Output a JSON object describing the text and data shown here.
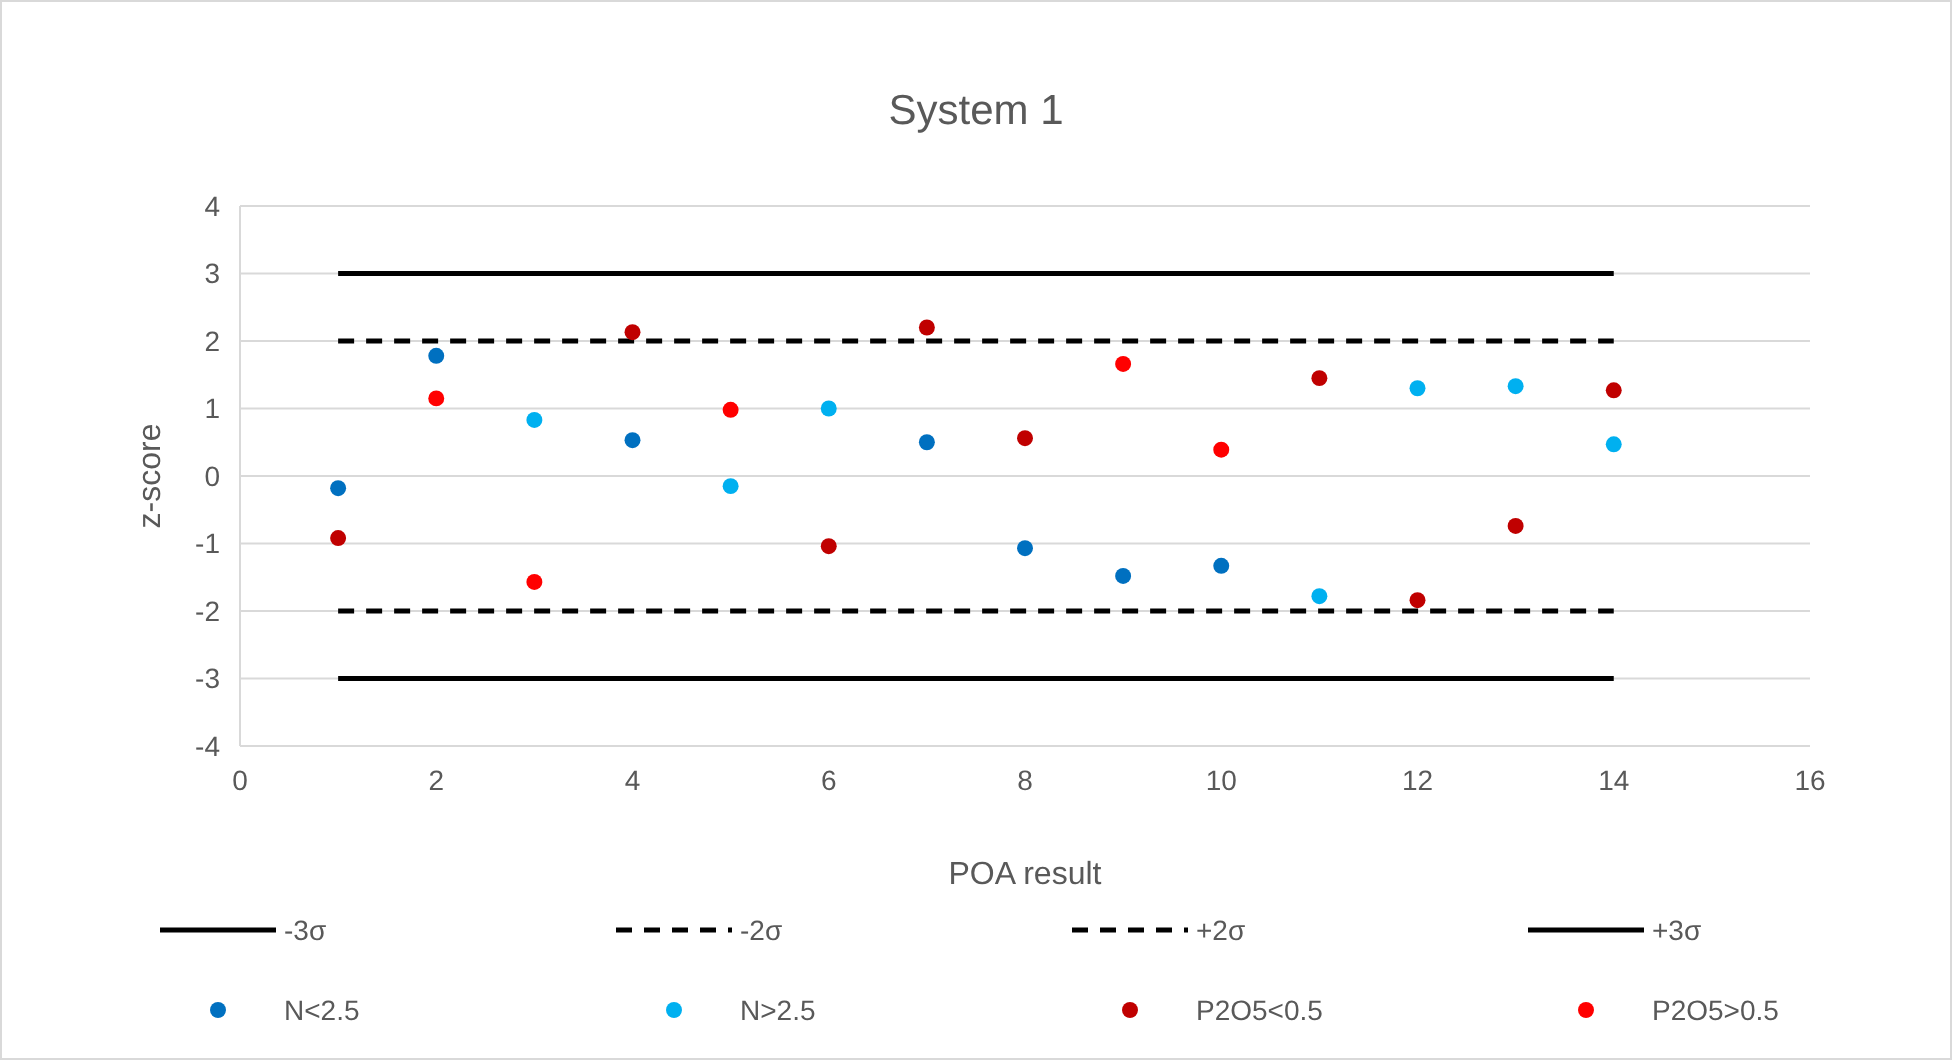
{
  "chart_data": {
    "type": "scatter",
    "title": "System 1",
    "xlabel": "POA result",
    "ylabel": "z-score",
    "xlim": [
      0,
      16
    ],
    "xticks": [
      0,
      2,
      4,
      6,
      8,
      10,
      12,
      14,
      16
    ],
    "ylim": [
      -4,
      4
    ],
    "yticks": [
      -4,
      -3,
      -2,
      -1,
      0,
      1,
      2,
      3,
      4
    ],
    "grid": "y",
    "legend": "bottom",
    "series": [
      {
        "name": "-3σ",
        "type": "line",
        "color": "#000000",
        "line_style": "solid",
        "marker": "none",
        "x": [
          1,
          14
        ],
        "values": [
          -3,
          -3
        ]
      },
      {
        "name": "-2σ",
        "type": "line",
        "color": "#000000",
        "line_style": "dashed",
        "marker": "none",
        "x": [
          1,
          14
        ],
        "values": [
          -2,
          -2
        ]
      },
      {
        "name": "+2σ",
        "type": "line",
        "color": "#000000",
        "line_style": "dashed",
        "marker": "none",
        "x": [
          1,
          14
        ],
        "values": [
          2,
          2
        ]
      },
      {
        "name": "+3σ",
        "type": "line",
        "color": "#000000",
        "line_style": "solid",
        "marker": "none",
        "x": [
          1,
          14
        ],
        "values": [
          3,
          3
        ]
      },
      {
        "name": "N<2.5",
        "color": "#0070c0",
        "marker": "circle",
        "x": [
          1,
          2,
          4,
          7,
          8,
          9,
          10
        ],
        "values": [
          -0.18,
          1.78,
          0.53,
          0.5,
          -1.07,
          -1.48,
          -1.33
        ]
      },
      {
        "name": "N>2.5",
        "color": "#00b0f0",
        "marker": "circle",
        "x": [
          3,
          5,
          6,
          11,
          12,
          13,
          14
        ],
        "values": [
          0.83,
          -0.15,
          1.0,
          -1.78,
          1.3,
          1.33,
          0.47
        ]
      },
      {
        "name": "P2O5<0.5",
        "color": "#c00000",
        "marker": "circle",
        "x": [
          1,
          4,
          6,
          7,
          8,
          11,
          12,
          13,
          14
        ],
        "values": [
          -0.92,
          2.13,
          -1.04,
          2.2,
          0.56,
          1.45,
          -1.84,
          -0.74,
          1.27
        ]
      },
      {
        "name": "P2O5>0.5",
        "color": "#ff0000",
        "marker": "circle",
        "x": [
          2,
          3,
          5,
          9,
          10
        ],
        "values": [
          1.15,
          -1.57,
          0.98,
          1.66,
          0.39
        ]
      }
    ]
  }
}
